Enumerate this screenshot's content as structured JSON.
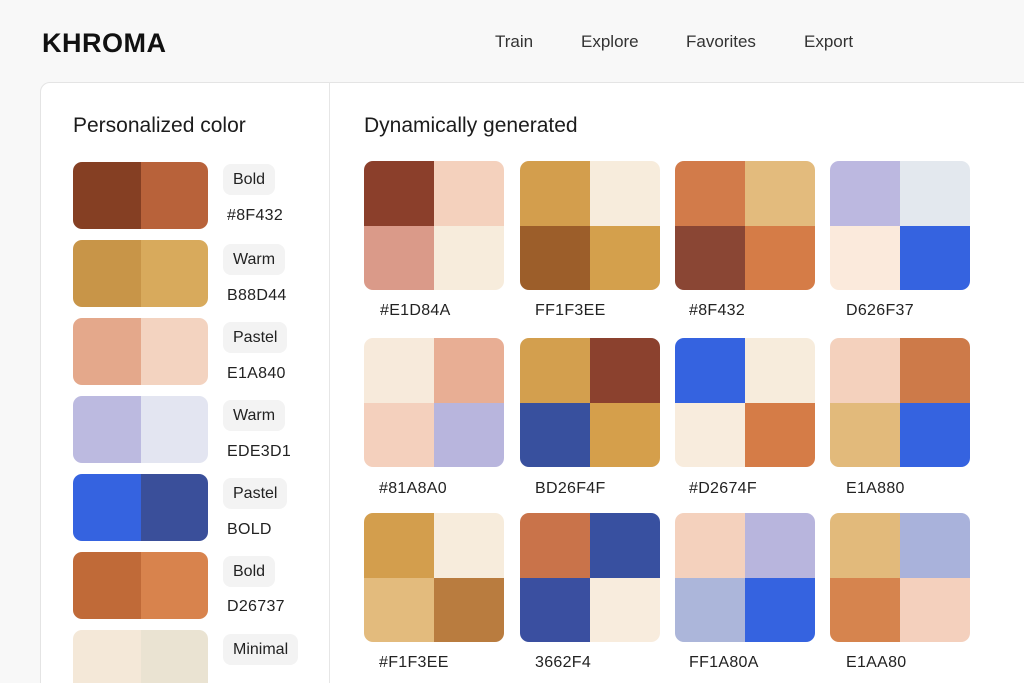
{
  "app": {
    "logo": "KHROMA"
  },
  "nav": [
    {
      "label": "Train"
    },
    {
      "label": "Explore"
    },
    {
      "label": "Favorites"
    },
    {
      "label": "Export"
    }
  ],
  "sidebar": {
    "title": "Personalized color",
    "items": [
      {
        "tag": "Bold",
        "code": "#8F432",
        "colors": [
          "#853f23",
          "#b8623a"
        ]
      },
      {
        "tag": "Warm",
        "code": "B88D44",
        "colors": [
          "#c89548",
          "#d8aa5c"
        ]
      },
      {
        "tag": "Pastel",
        "code": "E1A840",
        "colors": [
          "#e4a88b",
          "#f3d3c0"
        ]
      },
      {
        "tag": "Warm",
        "code": "EDE3D1",
        "colors": [
          "#bcbae0",
          "#e3e5f1"
        ]
      },
      {
        "tag": "Pastel",
        "code": "BOLD",
        "colors": [
          "#3563e0",
          "#3a4f9a"
        ]
      },
      {
        "tag": "Bold",
        "code": "D26737",
        "colors": [
          "#c06a38",
          "#d8834d"
        ]
      },
      {
        "tag": "Minimal",
        "code": "",
        "colors": [
          "#f4e8d8",
          "#eae3d2"
        ]
      }
    ]
  },
  "main": {
    "title": "Dynamically generated",
    "palettes": [
      {
        "code": "#E1D84A",
        "colors": [
          "#8b3f2b",
          "#f4d1bd",
          "#da9a89",
          "#f7ecdc"
        ]
      },
      {
        "code": "FF1F3EE",
        "colors": [
          "#d39e4d",
          "#f7ecdc",
          "#9c5e2a",
          "#d4a04c"
        ]
      },
      {
        "code": "#8F432",
        "colors": [
          "#d27b4a",
          "#e3bb7d",
          "#8a4634",
          "#d57c47"
        ]
      },
      {
        "code": "D626F37",
        "colors": [
          "#bcb8e0",
          "#e3e8ee",
          "#fbeadc",
          "#3563e0"
        ]
      },
      {
        "code": "#81A8A0",
        "colors": [
          "#f7eadb",
          "#e8ae94",
          "#f4d0bd",
          "#b8b5dd"
        ]
      },
      {
        "code": "BD26F4F",
        "colors": [
          "#d39f4e",
          "#8b412e",
          "#38509e",
          "#d59f4b"
        ]
      },
      {
        "code": "#D2674F",
        "colors": [
          "#3563e0",
          "#f7ecdc",
          "#f8ecdd",
          "#d57c47"
        ]
      },
      {
        "code": "E1A880",
        "colors": [
          "#f4d1bd",
          "#cd7a49",
          "#e2ba7b",
          "#3563e0"
        ]
      },
      {
        "code": "#F1F3EE",
        "colors": [
          "#d39e4d",
          "#f7ecdc",
          "#e3bb7d",
          "#b97c3f"
        ]
      },
      {
        "code": "3662F4",
        "colors": [
          "#c9734a",
          "#3850a0",
          "#3a4fa0",
          "#f8ecdd"
        ]
      },
      {
        "code": "FF1A80A",
        "colors": [
          "#f4d1bd",
          "#b8b5dd",
          "#acb6da",
          "#3563e0"
        ]
      },
      {
        "code": "E1AA80",
        "colors": [
          "#e2ba7b",
          "#a9b2db",
          "#d6844e",
          "#f4d0bd"
        ]
      }
    ]
  }
}
